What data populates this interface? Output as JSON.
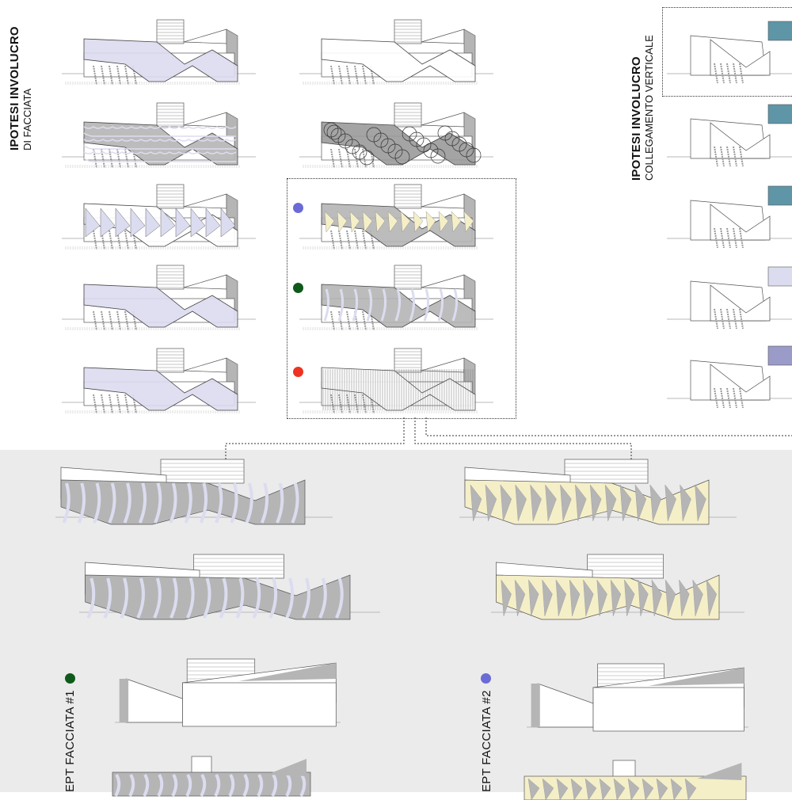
{
  "sections": {
    "facciata": {
      "title": "IPOTESI INVOLUCRO",
      "subtitle": "DI FACCIATA"
    },
    "collegamento": {
      "title": "IPOTESI INVOLUCRO",
      "subtitle": "COLLEGAMENTO VERTICALE"
    }
  },
  "concepts": [
    {
      "label": "EPT FACCIATA #1",
      "marker_color": "#0f5a1a"
    },
    {
      "label": "EPT FACCIATA #2",
      "marker_color": "#6a6bd6"
    }
  ],
  "markers": [
    {
      "name": "triangle-pattern",
      "color": "#6a6bd6"
    },
    {
      "name": "stripe-pattern",
      "color": "#0f5a1a"
    },
    {
      "name": "vertical-lines-pattern",
      "color": "#ee3322"
    }
  ],
  "colors": {
    "lavender": "#dcdcf0",
    "grey": "#b5b5b5",
    "teal": "#5e96a8",
    "yellow": "#f5efc8",
    "panel": "#ebebeb"
  }
}
